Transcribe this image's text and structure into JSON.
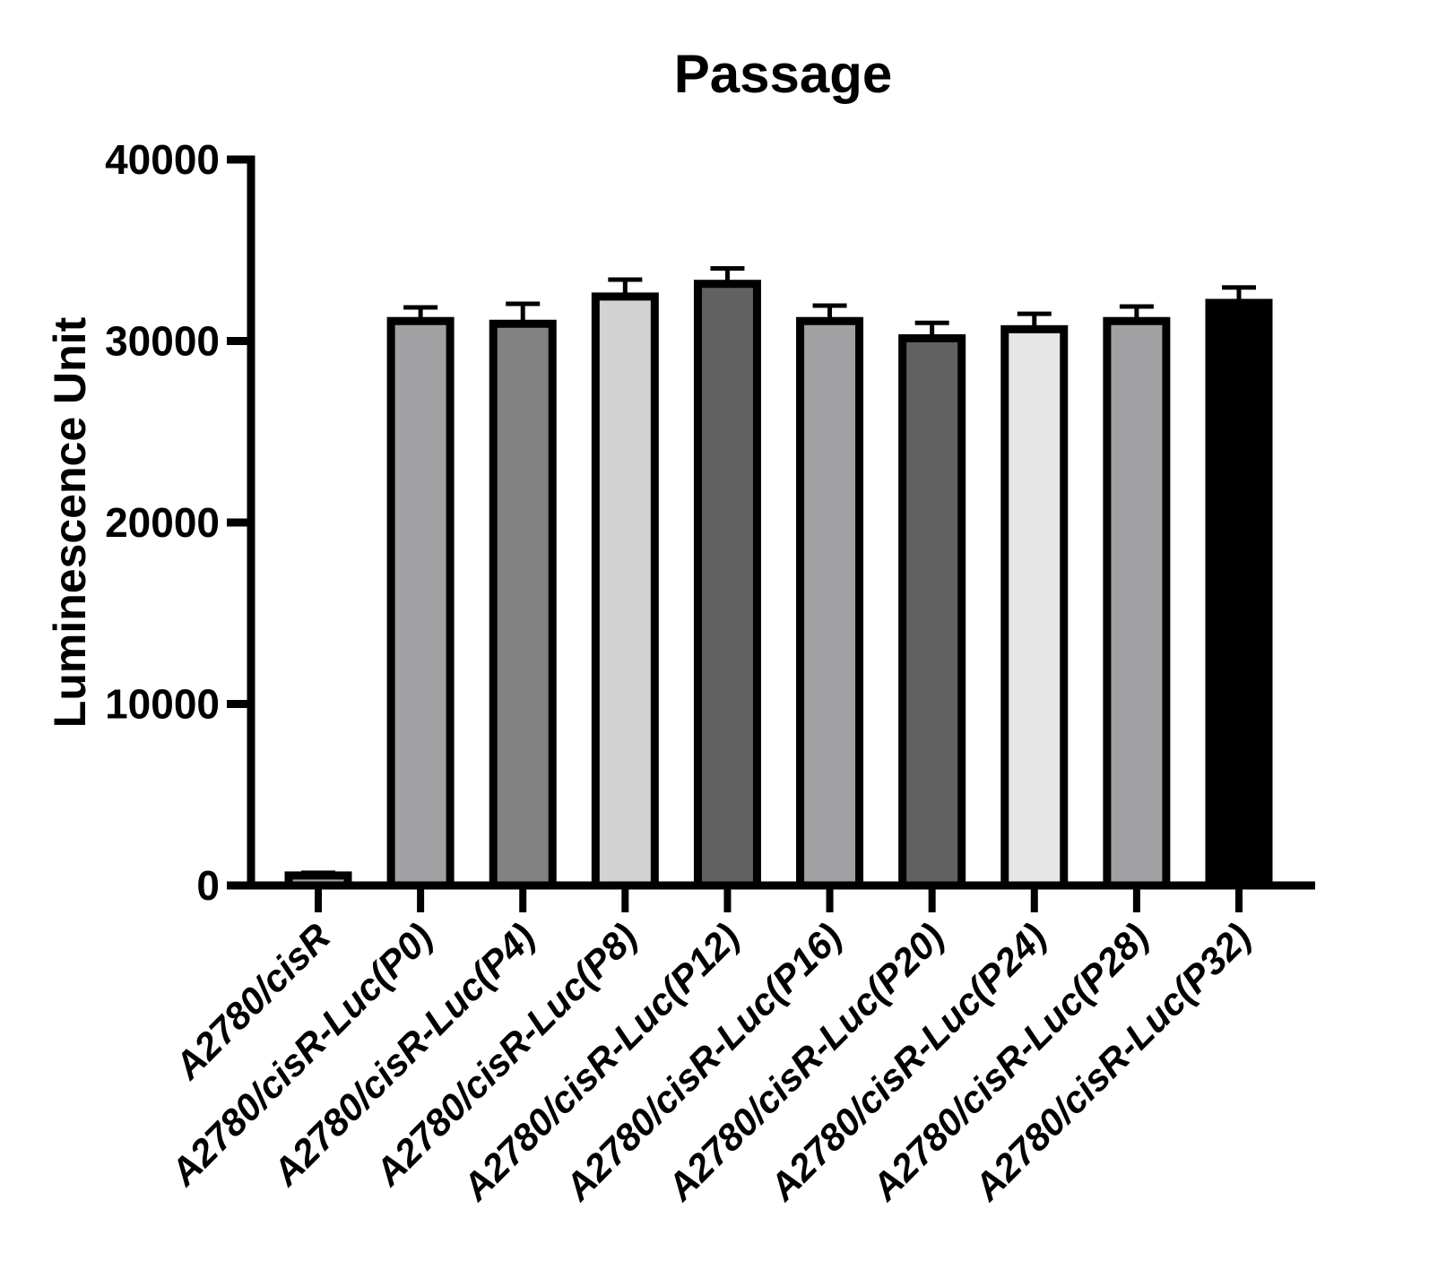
{
  "figure": {
    "background": "#ffffff",
    "text_color": "#000000",
    "axis_color": "#000000"
  },
  "chart_data": {
    "type": "bar",
    "title": "Passage",
    "xlabel": "",
    "ylabel": "Luminescence Unit",
    "ylim": [
      0,
      40000
    ],
    "yticks": [
      0,
      10000,
      20000,
      30000,
      40000
    ],
    "grid": false,
    "legend": "none",
    "error_bars": "upper-only",
    "categories": [
      "A2780/cisR",
      "A2780/cisR-Luc(P0)",
      "A2780/cisR-Luc(P4)",
      "A2780/cisR-Luc(P8)",
      "A2780/cisR-Luc(P12)",
      "A2780/cisR-Luc(P16)",
      "A2780/cisR-Luc(P20)",
      "A2780/cisR-Luc(P24)",
      "A2780/cisR-Luc(P28)",
      "A2780/cisR-Luc(P32)"
    ],
    "values": [
      550,
      31100,
      30950,
      32450,
      33150,
      31100,
      30150,
      30650,
      31100,
      32100
    ],
    "errors": [
      150,
      750,
      1100,
      930,
      850,
      850,
      850,
      850,
      800,
      850
    ],
    "bar_colors": [
      "#a1a1a4",
      "#a1a1a4",
      "#828282",
      "#d2d2d2",
      "#616161",
      "#a1a1a4",
      "#616161",
      "#e6e6e6",
      "#a1a1a4",
      "#000000"
    ],
    "bar_border_color": "#000000",
    "error_bar_color": "#000000"
  }
}
